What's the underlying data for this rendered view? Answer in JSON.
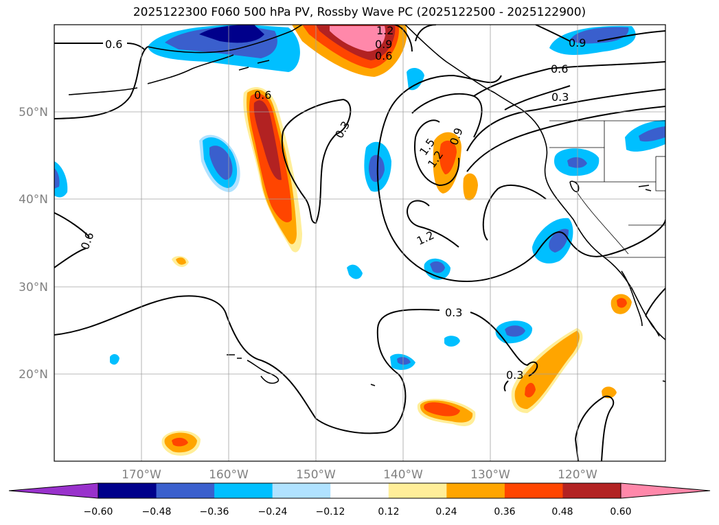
{
  "title": "2025122300 F060 500 hPa PV, Rossby Wave PC (2025122500 - 2025122900)",
  "axes": {
    "lon_labels": [
      "170°W",
      "160°W",
      "150°W",
      "140°W",
      "130°W",
      "120°W"
    ],
    "lat_labels": [
      "50°N",
      "40°N",
      "30°N",
      "20°N"
    ]
  },
  "contour_labels": [
    "0.6",
    "0.9",
    "1.2",
    "0.9",
    "0.6",
    "0.6",
    "0.3",
    "0.6",
    "0.3",
    "1.5",
    "1.2",
    "0.9",
    "0.6",
    "1.2",
    "0.3",
    "0.3"
  ],
  "colorbar": {
    "ticks": [
      "−0.60",
      "−0.48",
      "−0.36",
      "−0.24",
      "−0.12",
      "0.12",
      "0.24",
      "0.36",
      "0.48",
      "0.60"
    ],
    "colors": [
      "#9932cc",
      "#00008b",
      "#3a5fcd",
      "#00bfff",
      "#b0e2ff",
      "#ffffff",
      "#ffee99",
      "#ffa500",
      "#ff4500",
      "#b22222",
      "#ff88aa"
    ]
  }
}
